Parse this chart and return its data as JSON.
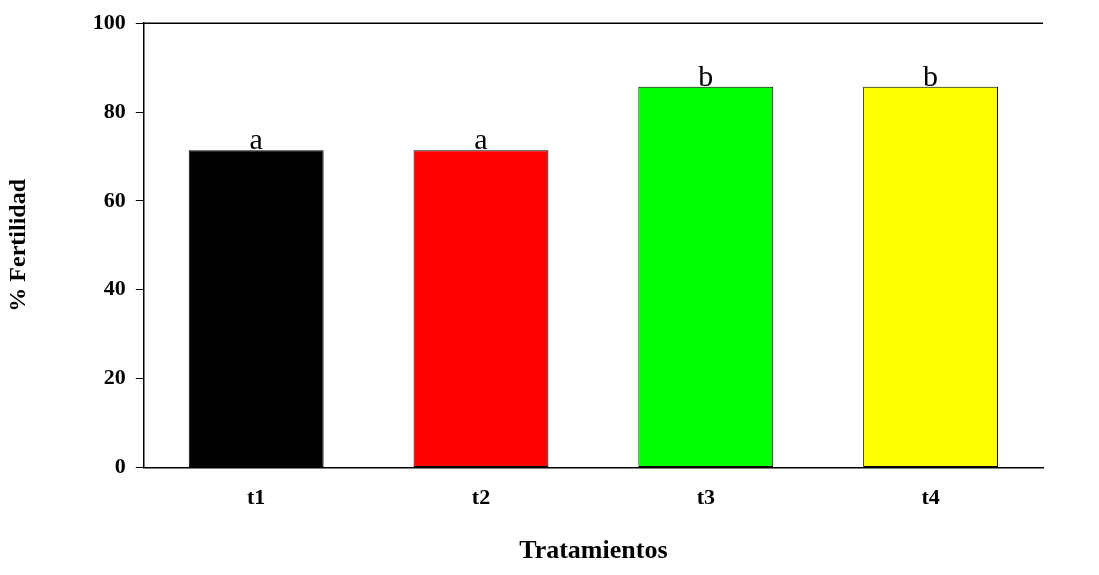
{
  "chart_data": {
    "type": "bar",
    "xlabel": "Tratamientos",
    "ylabel": "% Fertilidad",
    "categories": [
      "t1",
      "t2",
      "t3",
      "t4"
    ],
    "values": [
      71.4,
      71.4,
      85.7,
      85.7
    ],
    "colors": [
      "#000000",
      "#ff0000",
      "#00ff00",
      "#ffff00"
    ],
    "ylim": [
      0,
      100
    ],
    "yticks": [
      0,
      20,
      40,
      60,
      80,
      100
    ],
    "grid": false,
    "legend": false,
    "annotations": [
      {
        "text": "a",
        "x": "t1",
        "y": 71.4
      },
      {
        "text": "a",
        "x": "t2",
        "y": 71.4
      },
      {
        "text": "b",
        "x": "t3",
        "y": 85.7
      },
      {
        "text": "b",
        "x": "t4",
        "y": 85.7
      }
    ]
  }
}
